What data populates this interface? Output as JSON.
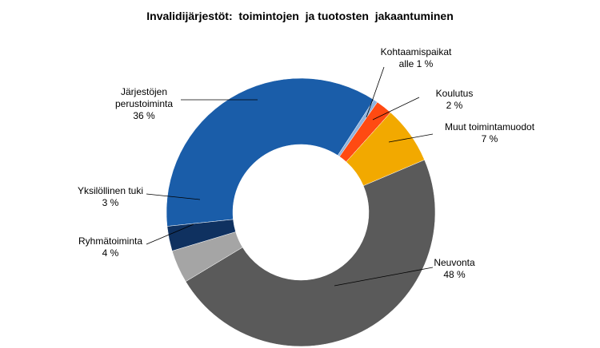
{
  "chart_data": {
    "type": "donut",
    "title": "Invalidijärjestöt:  toimintojen  ja tuotosten  jakaantuminen",
    "categories": [
      "Järjestöjen perustoiminta",
      "Kohtaamispaikat",
      "Koulutus",
      "Muut toimintamuodot",
      "Neuvonta",
      "Ryhmätoiminta",
      "Yksilöllinen tuki"
    ],
    "values": [
      36,
      0.5,
      2,
      7,
      48,
      4,
      3
    ],
    "value_labels": [
      "36 %",
      "alle 1 %",
      "2 %",
      "7 %",
      "48 %",
      "4 %",
      "3 %"
    ],
    "colors": [
      "#1a5da9",
      "#8db3df",
      "#ff4a12",
      "#f2a900",
      "#5a5a5a",
      "#a5a5a5",
      "#0f3160"
    ]
  }
}
